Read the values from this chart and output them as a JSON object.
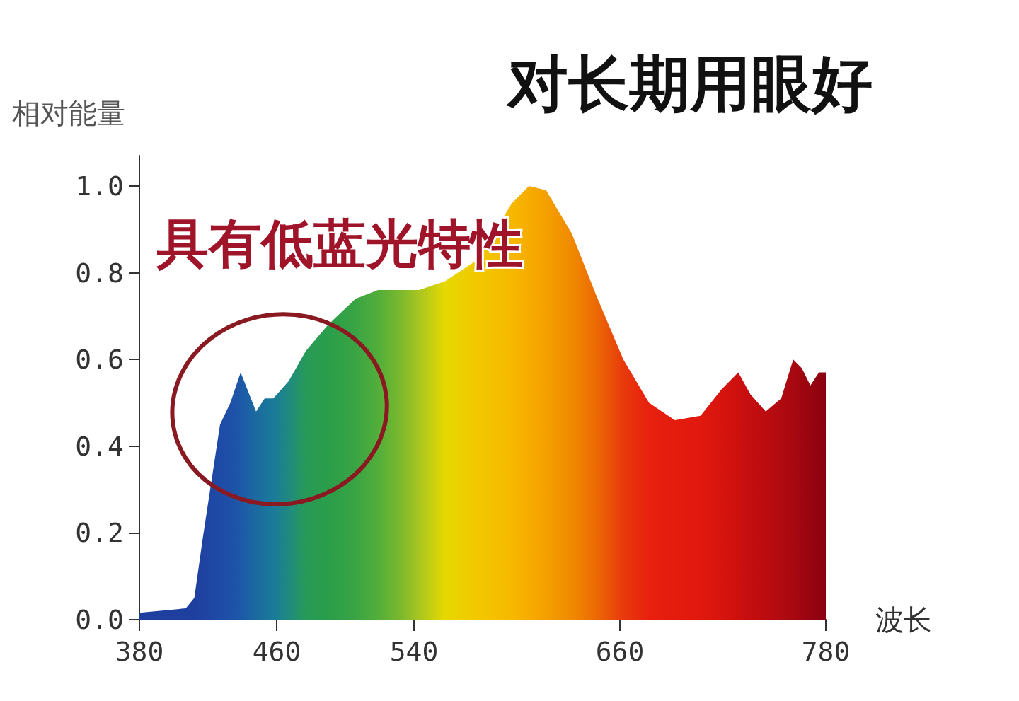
{
  "chart_data": {
    "type": "area",
    "title": "对长期用眼好",
    "ylabel": "相对能量",
    "xlabel": "波长",
    "annotations": [
      {
        "text": "具有低蓝光特性",
        "x": 439,
        "y": 0.57
      }
    ],
    "x": [
      380,
      407,
      412,
      417,
      422,
      427,
      433,
      439,
      444,
      448,
      453,
      458,
      467,
      477,
      490,
      506,
      519,
      532,
      543,
      558,
      577,
      597,
      607,
      617,
      632,
      646,
      662,
      677,
      692,
      707,
      719,
      729,
      736,
      745,
      754,
      761,
      766,
      771,
      776,
      780
    ],
    "values": [
      0.016,
      0.026,
      0.05,
      0.19,
      0.32,
      0.45,
      0.5,
      0.57,
      0.52,
      0.48,
      0.51,
      0.51,
      0.55,
      0.62,
      0.68,
      0.74,
      0.76,
      0.76,
      0.76,
      0.78,
      0.83,
      0.96,
      1.0,
      0.99,
      0.89,
      0.75,
      0.6,
      0.5,
      0.46,
      0.47,
      0.53,
      0.57,
      0.52,
      0.48,
      0.51,
      0.6,
      0.58,
      0.54,
      0.57,
      0.57
    ],
    "colors": [
      "#1f3f9e",
      "#1f3f9e",
      "#1f3f9e",
      "#1f43a2",
      "#1f47a4",
      "#1e4ba6",
      "#1e50a8",
      "#1d58a8",
      "#1c62a4",
      "#1b6aa0",
      "#1a729c",
      "#1a7a9a",
      "#1f8a80",
      "#289a58",
      "#2a9e4a",
      "#3aa444",
      "#52ae3a",
      "#7ab82e",
      "#a8c620",
      "#e6d800",
      "#f2c800",
      "#f7b800",
      "#f6ac00",
      "#f4a000",
      "#f08a00",
      "#ec6a04",
      "#e83a0c",
      "#e8200e",
      "#e41c0e",
      "#e0180e",
      "#d8140e",
      "#cc100e",
      "#c40e10",
      "#bc0c10",
      "#b00a10",
      "#a80810",
      "#a00610",
      "#980410",
      "#900210",
      "#8a0010"
    ],
    "xlim": [
      380,
      780
    ],
    "xticks": [
      380,
      460,
      540,
      660,
      780
    ],
    "ylim": [
      0,
      1.07
    ],
    "yticks": [
      {
        "value": 0,
        "label": "0.0"
      },
      0.2,
      0.4,
      0.6,
      0.8,
      {
        "value": 1,
        "label": "1.0"
      }
    ]
  }
}
